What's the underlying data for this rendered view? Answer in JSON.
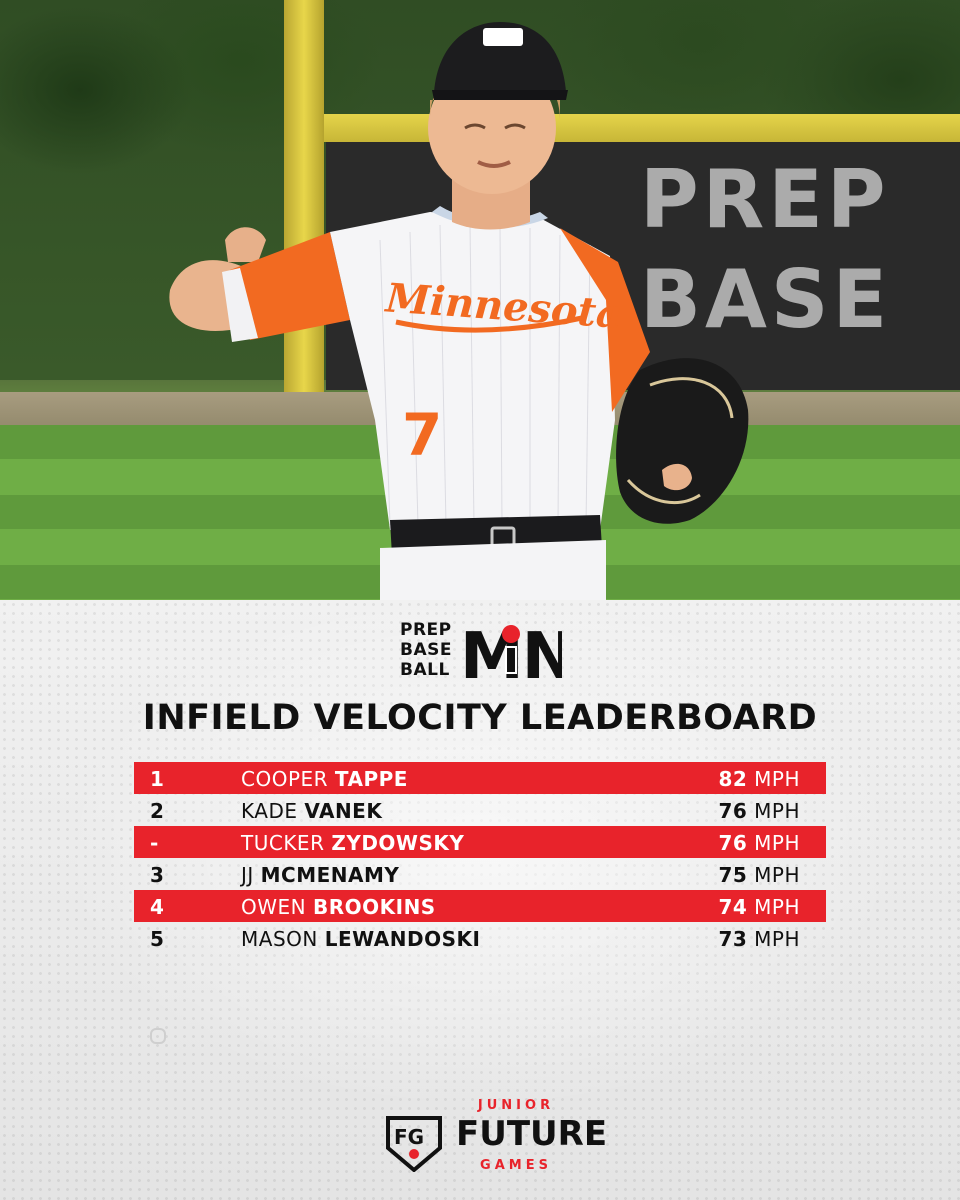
{
  "brand": {
    "pbb_words": [
      "PREP",
      "BASE",
      "BALL"
    ],
    "pbb_state": "MN",
    "footer_top": "JUNIOR",
    "footer_main": "FUTURE",
    "footer_bottom": "GAMES"
  },
  "photo": {
    "jersey_text": "Minnesota",
    "jersey_number": "7",
    "wall_text": [
      "PREP",
      "BASE"
    ]
  },
  "title": "INFIELD VELOCITY LEADERBOARD",
  "leaderboard": [
    {
      "rank": "1",
      "first": "COOPER",
      "last": "TAPPE",
      "velo": "82",
      "unit": "MPH",
      "highlight": true
    },
    {
      "rank": "2",
      "first": "KADE",
      "last": "VANEK",
      "velo": "76",
      "unit": "MPH",
      "highlight": false
    },
    {
      "rank": "-",
      "first": "TUCKER",
      "last": "ZYDOWSKY",
      "velo": "76",
      "unit": "MPH",
      "highlight": true
    },
    {
      "rank": "3",
      "first": "JJ",
      "last": "MCMENAMY",
      "velo": "75",
      "unit": "MPH",
      "highlight": false
    },
    {
      "rank": "4",
      "first": "OWEN",
      "last": "BROOKINS",
      "velo": "74",
      "unit": "MPH",
      "highlight": true
    },
    {
      "rank": "5",
      "first": "MASON",
      "last": "LEWANDOSKI",
      "velo": "73",
      "unit": "MPH",
      "highlight": false
    }
  ],
  "colors": {
    "accent_red": "#e8232b",
    "jersey_orange": "#f26a21",
    "ink": "#111111"
  }
}
